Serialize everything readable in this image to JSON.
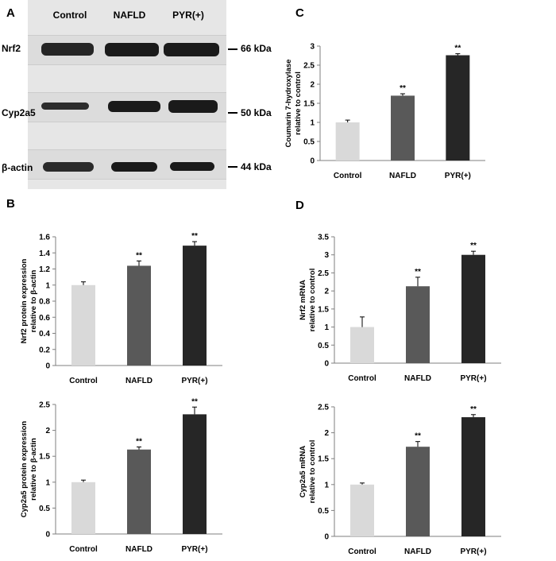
{
  "panels": {
    "A": "A",
    "B": "B",
    "C": "C",
    "D": "D"
  },
  "blot": {
    "lanes": [
      "Control",
      "NAFLD",
      "PYR(+)"
    ],
    "rows": [
      {
        "protein": "Nrf2",
        "kda": "66 kDa"
      },
      {
        "protein": "Cyp2a5",
        "kda": "50 kDa"
      },
      {
        "protein": "β-actin",
        "kda": "44 kDa"
      }
    ]
  },
  "chart_data": [
    {
      "id": "C",
      "type": "bar",
      "categories": [
        "Control",
        "NAFLD",
        "PYR(+)"
      ],
      "values": [
        1.0,
        1.7,
        2.76
      ],
      "errors": [
        0.06,
        0.05,
        0.04
      ],
      "significance": [
        "",
        "**",
        "**"
      ],
      "ylabel": "Coumarin 7-hydroxylase relative to control",
      "ylim": [
        0,
        3
      ],
      "yticks": [
        "0",
        "0.5",
        "1",
        "1.5",
        "2",
        "2.5",
        "3"
      ],
      "colors": [
        "#d9d9d9",
        "#595959",
        "#262626"
      ]
    },
    {
      "id": "B1",
      "type": "bar",
      "categories": [
        "Control",
        "NAFLD",
        "PYR(+)"
      ],
      "values": [
        1.0,
        1.24,
        1.49
      ],
      "errors": [
        0.04,
        0.06,
        0.05
      ],
      "significance": [
        "",
        "**",
        "**"
      ],
      "ylabel": "Nrf2 protein expression relative to β-actin",
      "ylim": [
        0,
        1.6
      ],
      "yticks": [
        "0",
        "0.2",
        "0.4",
        "0.6",
        "0.8",
        "1",
        "1.2",
        "1.4",
        "1.6"
      ],
      "colors": [
        "#d9d9d9",
        "#595959",
        "#262626"
      ]
    },
    {
      "id": "B2",
      "type": "bar",
      "categories": [
        "Control",
        "NAFLD",
        "PYR(+)"
      ],
      "values": [
        1.0,
        1.63,
        2.31
      ],
      "errors": [
        0.04,
        0.05,
        0.14
      ],
      "significance": [
        "",
        "**",
        "**"
      ],
      "ylabel": "Cyp2a5 protein expression relative to β-actin",
      "ylim": [
        0,
        2.5
      ],
      "yticks": [
        "0",
        "0.5",
        "1",
        "1.5",
        "2",
        "2.5"
      ],
      "colors": [
        "#d9d9d9",
        "#595959",
        "#262626"
      ]
    },
    {
      "id": "D1",
      "type": "bar",
      "categories": [
        "Control",
        "NAFLD",
        "PYR(+)"
      ],
      "values": [
        1.0,
        2.13,
        3.0
      ],
      "errors": [
        0.28,
        0.25,
        0.1
      ],
      "significance": [
        "",
        "**",
        "**"
      ],
      "ylabel": "Nrf2 mRNA relative to control",
      "ylim": [
        0,
        3.5
      ],
      "yticks": [
        "0",
        "0.5",
        "1",
        "1.5",
        "2",
        "2.5",
        "3",
        "3.5"
      ],
      "colors": [
        "#d9d9d9",
        "#595959",
        "#262626"
      ]
    },
    {
      "id": "D2",
      "type": "bar",
      "categories": [
        "Control",
        "NAFLD",
        "PYR(+)"
      ],
      "values": [
        1.0,
        1.73,
        2.3
      ],
      "errors": [
        0.03,
        0.1,
        0.05
      ],
      "significance": [
        "",
        "**",
        "**"
      ],
      "ylabel": "Cyp2a5 mRNA relative to control",
      "ylim": [
        0,
        2.5
      ],
      "yticks": [
        "0",
        "0.5",
        "1",
        "1.5",
        "2",
        "2.5"
      ],
      "colors": [
        "#d9d9d9",
        "#595959",
        "#262626"
      ]
    }
  ]
}
